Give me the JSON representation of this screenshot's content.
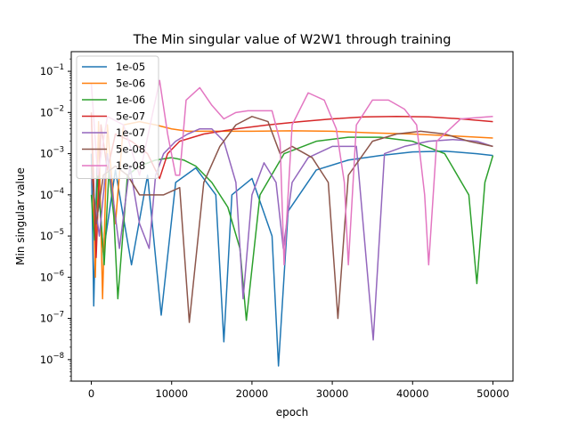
{
  "chart_data": {
    "type": "line",
    "title": "The Min singular value of W2W1 through training",
    "xlabel": "epoch",
    "ylabel": "Min singular value",
    "yscale": "log",
    "xlim": [
      -2500,
      52500
    ],
    "ylim": [
      3e-09,
      0.3
    ],
    "xticks": [
      0,
      10000,
      20000,
      30000,
      40000,
      50000
    ],
    "xtick_labels": [
      "0",
      "10000",
      "20000",
      "30000",
      "40000",
      "50000"
    ],
    "yticks": [
      1e-08,
      1e-07,
      1e-06,
      1e-05,
      0.0001,
      0.001,
      0.01,
      0.1
    ],
    "ytick_labels": [
      {
        "base": "10",
        "exp": "−8"
      },
      {
        "base": "10",
        "exp": "−7"
      },
      {
        "base": "10",
        "exp": "−6"
      },
      {
        "base": "10",
        "exp": "−5"
      },
      {
        "base": "10",
        "exp": "−4"
      },
      {
        "base": "10",
        "exp": "−3"
      },
      {
        "base": "10",
        "exp": "−2"
      },
      {
        "base": "10",
        "exp": "−1"
      }
    ],
    "grid": false,
    "legend_position": "top-left",
    "series": [
      {
        "name": "1e-05",
        "color": "#1f77b4",
        "x": [
          0,
          300,
          700,
          1500,
          3000,
          5000,
          7000,
          8700,
          10500,
          13000,
          15500,
          16500,
          17500,
          20000,
          22500,
          23300,
          24500,
          28000,
          32000,
          36000,
          40000,
          44000,
          48000,
          50000
        ],
        "y": [
          0.001,
          2e-07,
          0.0005,
          4e-06,
          0.0004,
          2e-06,
          0.0003,
          1.2e-07,
          0.0002,
          0.00045,
          0.0001,
          2.7e-08,
          0.0001,
          0.00025,
          1e-05,
          7e-09,
          4e-05,
          0.0004,
          0.0007,
          0.0009,
          0.0011,
          0.00115,
          0.001,
          0.0009
        ]
      },
      {
        "name": "5e-06",
        "color": "#ff7f0e",
        "x": [
          0,
          500,
          900,
          1400,
          2000,
          3000,
          4000,
          6000,
          8000,
          10000,
          12000,
          15000,
          20000,
          25000,
          30000,
          35000,
          40000,
          45000,
          50000
        ],
        "y": [
          0.01,
          1e-06,
          0.006,
          3e-07,
          0.005,
          2e-05,
          0.005,
          0.006,
          0.005,
          0.004,
          0.0035,
          0.0035,
          0.0035,
          0.0036,
          0.0035,
          0.0032,
          0.003,
          0.0027,
          0.0024
        ]
      },
      {
        "name": "1e-06",
        "color": "#2ca02c",
        "x": [
          0,
          400,
          800,
          1600,
          2200,
          2800,
          3300,
          4500,
          6000,
          8000,
          10000,
          11500,
          13000,
          15000,
          17000,
          18500,
          19300,
          21000,
          24000,
          28000,
          32000,
          36000,
          40000,
          44000,
          47000,
          48000,
          49000,
          50000
        ],
        "y": [
          0.0001,
          8e-06,
          0.0003,
          2e-06,
          0.0004,
          3e-05,
          3e-07,
          0.0003,
          0.0005,
          0.0007,
          0.0008,
          0.0007,
          0.0005,
          0.0002,
          5e-05,
          5e-06,
          9e-08,
          0.0001,
          0.001,
          0.002,
          0.0025,
          0.0025,
          0.002,
          0.001,
          0.0001,
          7e-07,
          0.0002,
          0.0009
        ]
      },
      {
        "name": "5e-07",
        "color": "#d62728",
        "x": [
          0,
          600,
          1200,
          2000,
          3000,
          5000,
          7000,
          8500,
          9500,
          11000,
          14000,
          18000,
          22000,
          26000,
          30000,
          34000,
          38000,
          42000,
          46000,
          50000
        ],
        "y": [
          0.01,
          3e-06,
          0.005,
          0.0004,
          0.003,
          0.002,
          0.001,
          0.00025,
          0.001,
          0.002,
          0.003,
          0.004,
          0.005,
          0.006,
          0.007,
          0.0078,
          0.008,
          0.0078,
          0.007,
          0.006
        ]
      },
      {
        "name": "1e-07",
        "color": "#9467bd",
        "x": [
          0,
          1000,
          2000,
          3500,
          4800,
          6000,
          7200,
          8000,
          9000,
          10500,
          12000,
          13500,
          15000,
          16500,
          18000,
          18900,
          20000,
          21500,
          23000,
          23900,
          25000,
          27000,
          30000,
          33000,
          35100,
          36500,
          39000,
          42000,
          45000,
          48000,
          50000
        ],
        "y": [
          0.0003,
          1e-05,
          0.001,
          5e-06,
          0.0005,
          2e-05,
          5e-06,
          0.0003,
          0.001,
          0.002,
          0.003,
          0.004,
          0.004,
          0.002,
          0.0002,
          3e-07,
          0.0001,
          0.0006,
          0.0002,
          5e-06,
          0.0002,
          0.0008,
          0.0015,
          0.0015,
          3e-08,
          0.001,
          0.0015,
          0.002,
          0.0022,
          0.002,
          0.0015
        ]
      },
      {
        "name": "5e-08",
        "color": "#8c564b",
        "x": [
          0,
          600,
          1500,
          3000,
          4500,
          6000,
          7500,
          9000,
          11000,
          12200,
          14000,
          16000,
          18000,
          20000,
          22000,
          23500,
          25000,
          27500,
          29500,
          30700,
          32000,
          35000,
          38000,
          41000,
          44000,
          47000,
          50000
        ],
        "y": [
          0.0005,
          2e-05,
          0.0003,
          0.0005,
          0.0003,
          0.0001,
          0.0001,
          0.0001,
          0.00015,
          8e-08,
          0.0002,
          0.0015,
          0.005,
          0.008,
          0.006,
          0.001,
          0.0015,
          0.0008,
          0.0002,
          1e-07,
          0.0003,
          0.002,
          0.003,
          0.0035,
          0.003,
          0.002,
          0.0015
        ]
      },
      {
        "name": "1e-08",
        "color": "#e377c2",
        "x": [
          0,
          800,
          2000,
          4000,
          6000,
          8500,
          9500,
          10500,
          11000,
          11800,
          13500,
          15000,
          16500,
          18000,
          19500,
          21000,
          22500,
          23500,
          24000,
          25000,
          27000,
          29000,
          30500,
          31500,
          32000,
          33000,
          35000,
          37000,
          39000,
          40500,
          41500,
          42000,
          43000,
          46000,
          50000
        ],
        "y": [
          0.05,
          0.0003,
          0.008,
          0.005,
          0.0003,
          0.06,
          0.003,
          0.0003,
          0.0003,
          0.02,
          0.04,
          0.015,
          0.007,
          0.01,
          0.011,
          0.011,
          0.011,
          0.002,
          2e-06,
          0.005,
          0.03,
          0.02,
          0.004,
          0.0002,
          2e-06,
          0.005,
          0.02,
          0.02,
          0.012,
          0.005,
          0.0001,
          2e-06,
          0.002,
          0.007,
          0.008
        ]
      }
    ]
  }
}
